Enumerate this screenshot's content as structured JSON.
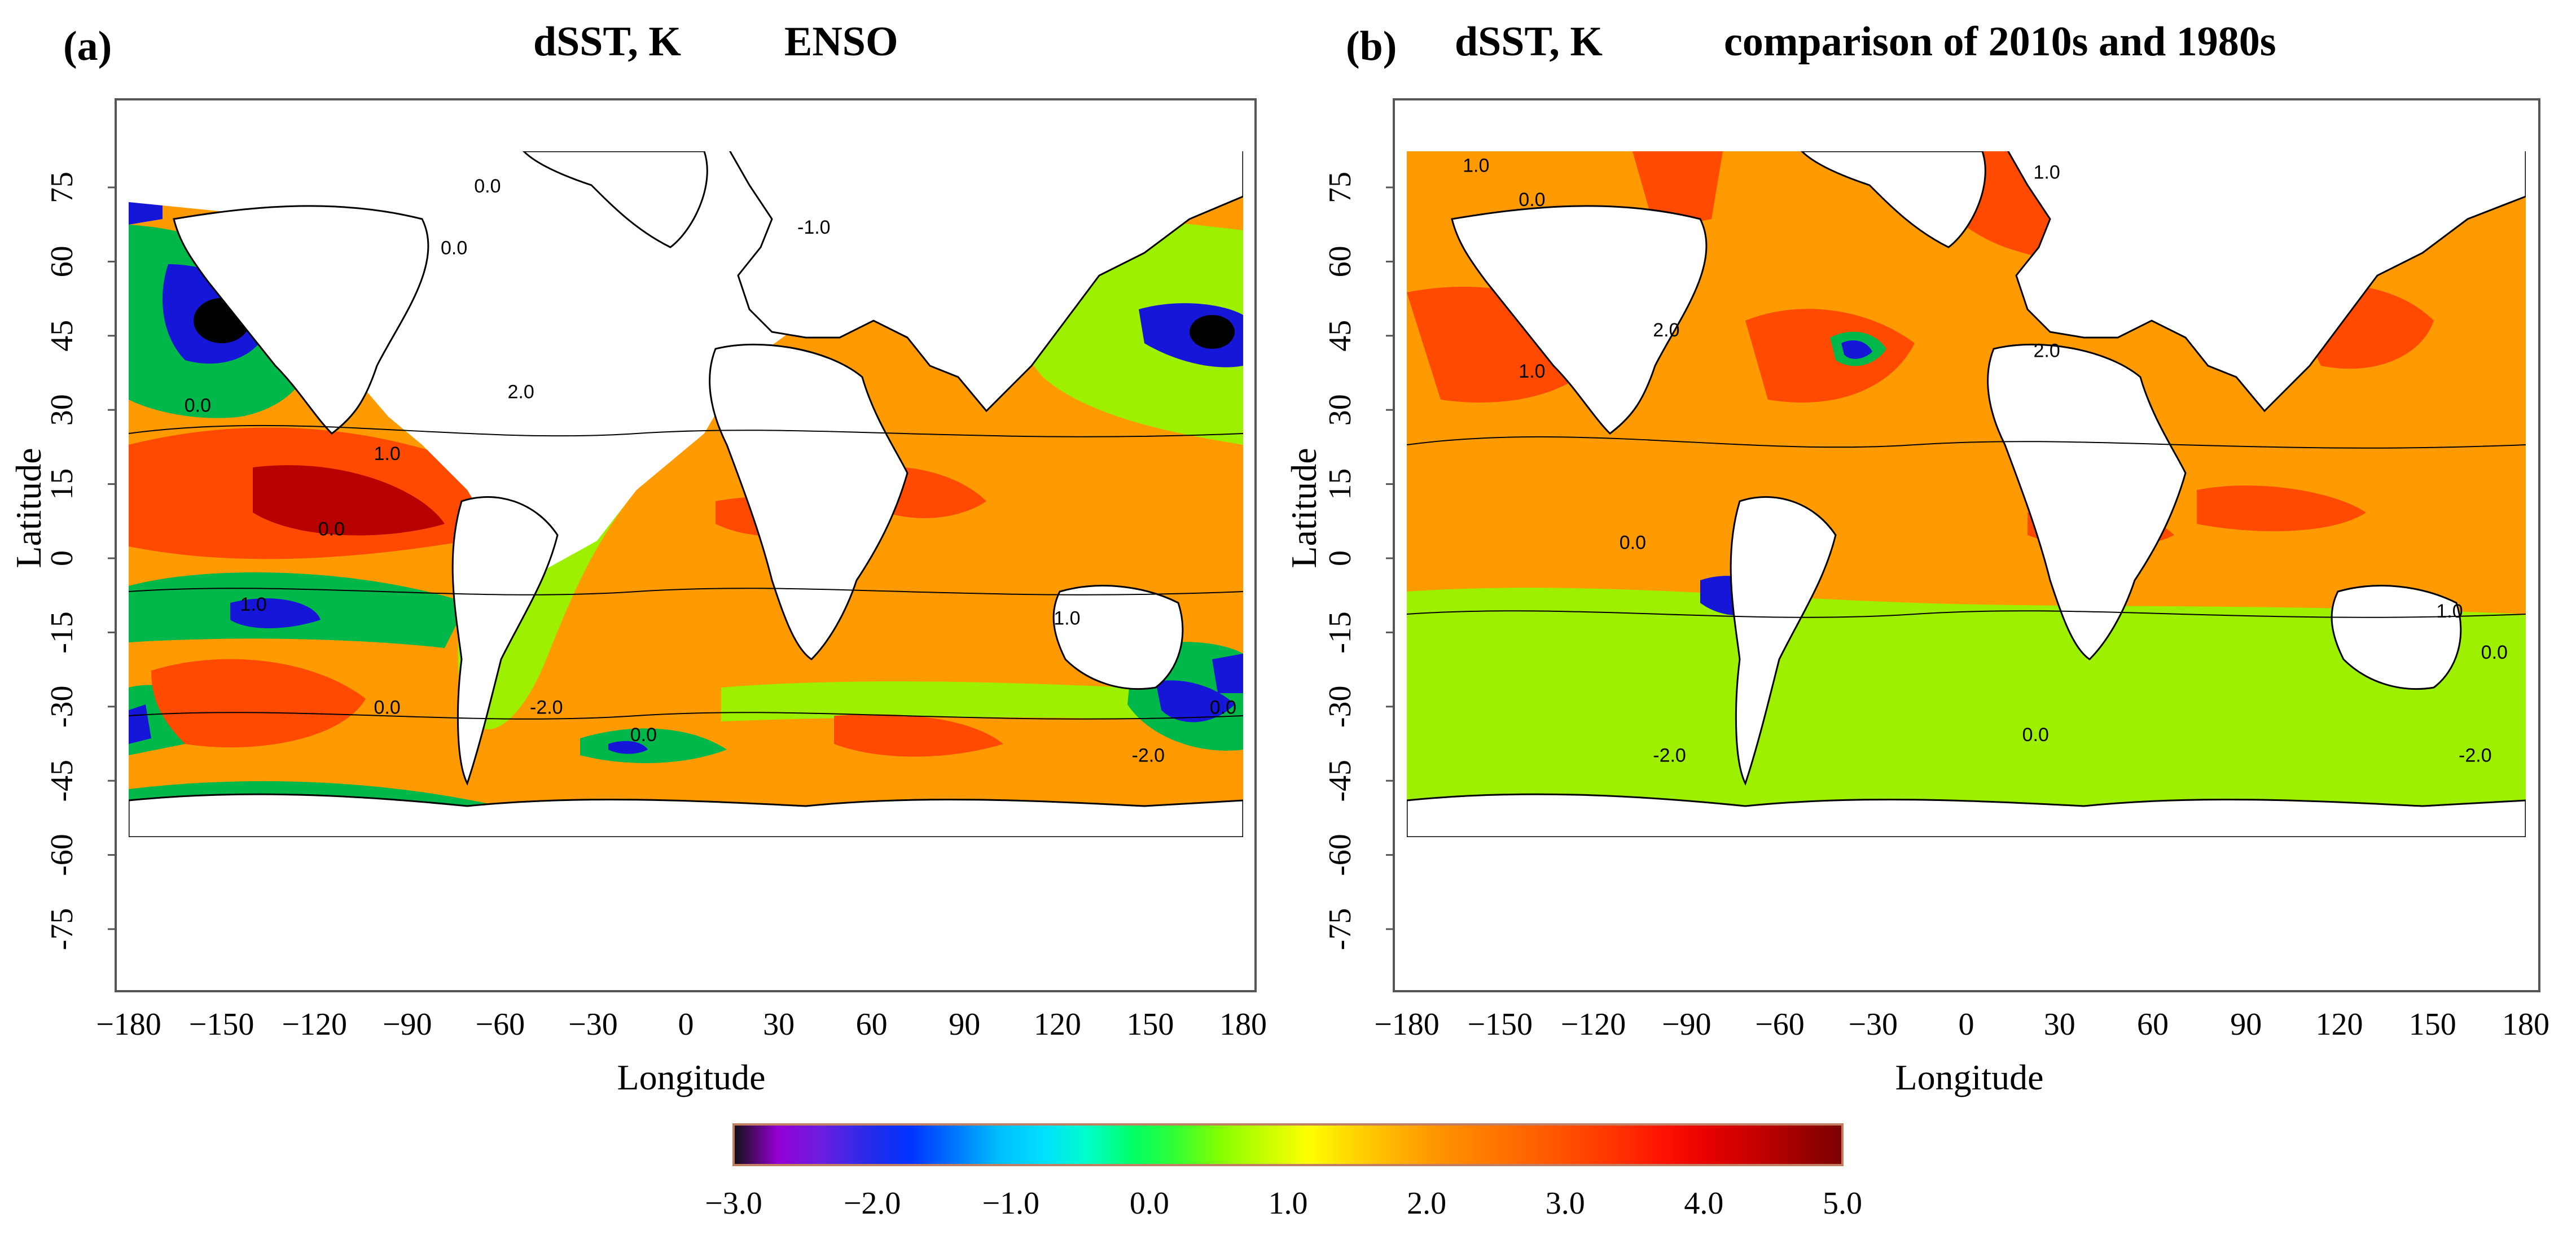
{
  "panels": [
    {
      "id": "a",
      "letter": "(a)",
      "title_var": "dSST,  K",
      "title_case": "ENSO",
      "xlabel": "Longitude",
      "ylabel": "Latitude",
      "contour_labels": [
        "0.0",
        "1.0",
        "2.0",
        "0.0",
        "1.0",
        "0.0",
        "-1.0",
        "0.0",
        "0.0",
        "-2.0",
        "0.0",
        "1.0",
        "-2.0",
        "0.0"
      ]
    },
    {
      "id": "b",
      "letter": "(b)",
      "title_var": "dSST,  K",
      "title_case": "comparison of 2010s and 1980s",
      "xlabel": "Longitude",
      "ylabel": "Latitude",
      "contour_labels": [
        "1.0",
        "0.0",
        "2.0",
        "1.0",
        "-2.0",
        "0.0",
        "1.0",
        "2.0",
        "0.0",
        "-2.0",
        "1.0",
        "0.0"
      ]
    }
  ],
  "map_data": {
    "projection": "equirectangular",
    "lon_ticks": [
      "−180",
      "−150",
      "−120",
      "−90",
      "−60",
      "−30",
      "0",
      "30",
      "60",
      "90",
      "120",
      "150",
      "180"
    ],
    "lat_ticks": [
      "75",
      "60",
      "45",
      "30",
      "15",
      "0",
      "-15",
      "-30",
      "-45",
      "-60",
      "-75"
    ],
    "lon_range": [
      -180,
      180
    ],
    "lat_range": [
      -90,
      90
    ]
  },
  "colorbar": {
    "ticks": [
      "−3.0",
      "−2.0",
      "−1.0",
      "0.0",
      "1.0",
      "2.0",
      "3.0",
      "4.0",
      "5.0"
    ],
    "range": [
      -3.0,
      5.0
    ],
    "colors": [
      "#111111",
      "#9400d3",
      "#6a1ee0",
      "#2a2ae8",
      "#0033ff",
      "#0077ff",
      "#00bfff",
      "#00e0ff",
      "#00ffc8",
      "#00ff66",
      "#33ff33",
      "#88ff00",
      "#c8ff00",
      "#ffff00",
      "#ffd400",
      "#ffb000",
      "#ff9000",
      "#ff7a00",
      "#ff6200",
      "#ff4a00",
      "#ff3000",
      "#ff1000",
      "#e60000",
      "#c80000",
      "#a00000",
      "#7a0000"
    ]
  },
  "colors": {
    "neg_strong": "#1616d8",
    "neg": "#00b84a",
    "near_zero": "#9cf000",
    "pos": "#ff9a00",
    "pos_strong": "#ff4a00",
    "pos_max": "#b80000",
    "land": "#ffffff",
    "frame": "#555555"
  }
}
